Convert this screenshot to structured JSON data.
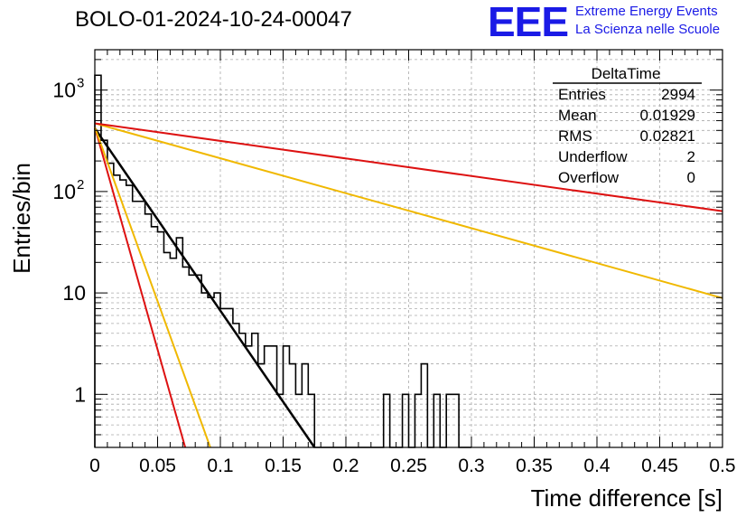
{
  "header": {
    "title": "BOLO-01-2024-10-24-00047",
    "logo_text": "EEE",
    "logo_line1": "Extreme Energy Events",
    "logo_line2": "La Scienza nelle Scuole",
    "logo_color": "#1a1ae6"
  },
  "stats_box": {
    "title": "DeltaTime",
    "rows": [
      {
        "label": "Entries",
        "value": "2994"
      },
      {
        "label": "Mean",
        "value": "0.01929"
      },
      {
        "label": "RMS",
        "value": "0.02821"
      },
      {
        "label": "Underflow",
        "value": "2"
      },
      {
        "label": "Overflow",
        "value": "0"
      }
    ]
  },
  "chart_data": {
    "type": "histogram",
    "xlabel": "Time difference [s]",
    "ylabel": "Entries/bin",
    "xlim": [
      0,
      0.5
    ],
    "ylim": [
      0.3,
      2500
    ],
    "y_scale": "log",
    "grid": true,
    "x_ticks": [
      "0",
      "0.05",
      "0.1",
      "0.15",
      "0.2",
      "0.25",
      "0.3",
      "0.35",
      "0.4",
      "0.45",
      "0.5"
    ],
    "y_ticks": [
      {
        "value": 1,
        "base": "1",
        "exp": ""
      },
      {
        "value": 10,
        "base": "10",
        "exp": ""
      },
      {
        "value": 100,
        "base": "10",
        "exp": "2"
      },
      {
        "value": 1000,
        "base": "10",
        "exp": "3"
      }
    ],
    "bin_width": 0.005,
    "bin_counts": [
      1400,
      320,
      190,
      145,
      130,
      115,
      80,
      80,
      60,
      45,
      40,
      25,
      22,
      35,
      18,
      15,
      15,
      10,
      9,
      10,
      7,
      7,
      5,
      4,
      3,
      4,
      2,
      3,
      3,
      1,
      3,
      2,
      1,
      2,
      1,
      0,
      0,
      0,
      0,
      0,
      0,
      0,
      0,
      0,
      0
    ],
    "bin_counts_tail": [
      0,
      1,
      0,
      0,
      1,
      0,
      1,
      2,
      0,
      1,
      0,
      1,
      1,
      0,
      0
    ],
    "fits": [
      {
        "color": "#000000",
        "x": [
          0,
          0.175
        ],
        "y": [
          420,
          0.3
        ]
      },
      {
        "color": "#dd1111",
        "x": [
          0,
          0.072
        ],
        "y": [
          430,
          0.3
        ]
      },
      {
        "color": "#f0b800",
        "x": [
          0,
          0.092
        ],
        "y": [
          430,
          0.3
        ]
      },
      {
        "color": "#f0b800",
        "x": [
          0,
          0.5
        ],
        "y": [
          470,
          8.9
        ]
      },
      {
        "color": "#dd1111",
        "x": [
          0,
          0.5
        ],
        "y": [
          470,
          64
        ]
      }
    ]
  }
}
